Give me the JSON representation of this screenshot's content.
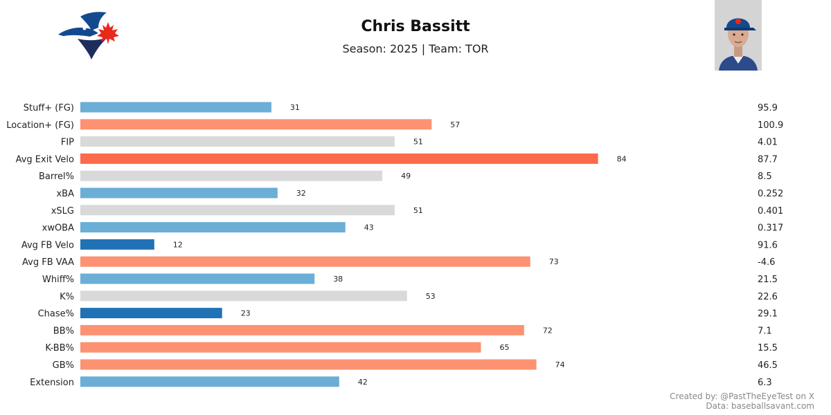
{
  "header": {
    "title": "Chris Bassitt",
    "subtitle": "Season: 2025 | Team: TOR",
    "logo": "toronto-blue-jays-logo",
    "photo": "player-headshot"
  },
  "footer": {
    "credit": "Created by: @PastTheEyeTest on X",
    "source": "Data: baseballsavant.com"
  },
  "chart_data": {
    "type": "bar",
    "orientation": "horizontal",
    "xlim": [
      0,
      100
    ],
    "grid": false,
    "categories": [
      "Stuff+ (FG)",
      "Location+ (FG)",
      "FIP",
      "Avg Exit Velo",
      "Barrel%",
      "xBA",
      "xSLG",
      "xwOBA",
      "Avg FB Velo",
      "Avg FB VAA",
      "Whiff%",
      "K%",
      "Chase%",
      "BB%",
      "K-BB%",
      "GB%",
      "Extension"
    ],
    "values": [
      31,
      57,
      51,
      84,
      49,
      32,
      51,
      43,
      12,
      73,
      38,
      53,
      23,
      72,
      65,
      74,
      42
    ],
    "stat_values": [
      "95.9",
      "100.9",
      "4.01",
      "87.7",
      "8.5",
      "0.252",
      "0.401",
      "0.317",
      "91.6",
      "-4.6",
      "21.5",
      "22.6",
      "29.1",
      "7.1",
      "15.5",
      "46.5",
      "6.3"
    ],
    "colors": [
      "#6baed6",
      "#fc9272",
      "#d9d9d9",
      "#fb6a4a",
      "#d9d9d9",
      "#6baed6",
      "#d9d9d9",
      "#6baed6",
      "#2171b5",
      "#fc9272",
      "#6baed6",
      "#d9d9d9",
      "#2171b5",
      "#fc9272",
      "#fc9272",
      "#fc9272",
      "#6baed6"
    ]
  }
}
